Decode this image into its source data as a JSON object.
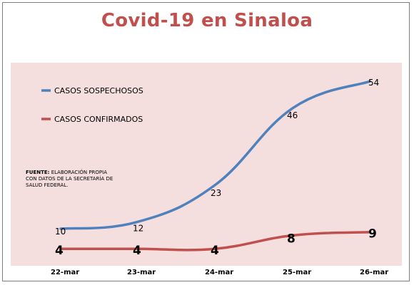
{
  "title": "Covid-19 en Sinaloa",
  "note": {
    "label": "FUENTE:",
    "text": "ELABORACIÓN PROPIA CON DATOS DE LA SECRETARÍA DE SALUD FEDERAL."
  },
  "colors": {
    "plot_bg": "#f4dede",
    "suspected": "#4f81bd",
    "confirmed": "#c0504d",
    "title": "#c0504d"
  },
  "chart_data": {
    "type": "line",
    "title": "Covid-19 en Sinaloa",
    "categories": [
      "22-mar",
      "23-mar",
      "24-mar",
      "25-mar",
      "26-mar"
    ],
    "series": [
      {
        "name": "CASOS SOSPECHOSOS",
        "values": [
          10,
          12,
          23,
          46,
          54
        ],
        "color": "#4f81bd"
      },
      {
        "name": "CASOS CONFIRMADOS",
        "values": [
          4,
          4,
          4,
          8,
          9
        ],
        "color": "#c0504d"
      }
    ],
    "ylim": [
      0,
      60
    ],
    "grid": false,
    "legend": "top-left"
  }
}
